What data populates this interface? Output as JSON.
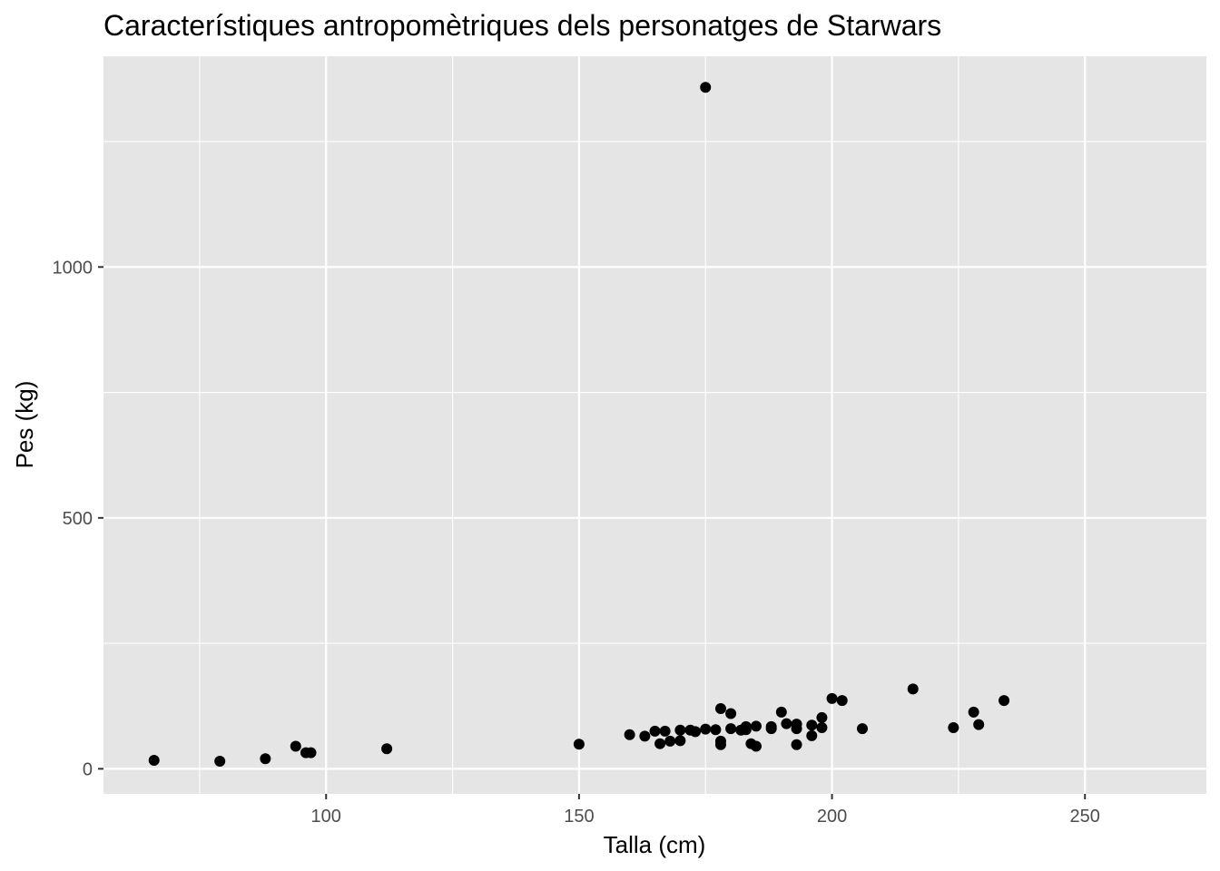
{
  "chart_data": {
    "type": "scatter",
    "title": "Característiques antropomètriques dels personatges de Starwars",
    "xlabel": "Talla (cm)",
    "ylabel": "Pes (kg)",
    "xlim": [
      56,
      274
    ],
    "ylim": [
      -50,
      1420
    ],
    "x_ticks": [
      100,
      150,
      200,
      250
    ],
    "x_tick_labels": [
      "100",
      "150",
      "200",
      "250"
    ],
    "y_ticks": [
      0,
      500,
      1000
    ],
    "y_tick_labels": [
      "0",
      "500",
      "1000"
    ],
    "x_minor_ticks": [
      75,
      125,
      175,
      225
    ],
    "y_minor_ticks": [
      250,
      750,
      1250
    ],
    "grid": true,
    "background": "#e5e5e5",
    "grid_color": "#ffffff",
    "point_color": "#000000",
    "points": [
      {
        "x": 66,
        "y": 17
      },
      {
        "x": 79,
        "y": 15
      },
      {
        "x": 88,
        "y": 20
      },
      {
        "x": 94,
        "y": 45
      },
      {
        "x": 96,
        "y": 32
      },
      {
        "x": 97,
        "y": 32
      },
      {
        "x": 112,
        "y": 40
      },
      {
        "x": 150,
        "y": 49
      },
      {
        "x": 160,
        "y": 68
      },
      {
        "x": 163,
        "y": 65
      },
      {
        "x": 165,
        "y": 75
      },
      {
        "x": 166,
        "y": 50
      },
      {
        "x": 167,
        "y": 75
      },
      {
        "x": 168,
        "y": 55
      },
      {
        "x": 170,
        "y": 56
      },
      {
        "x": 170,
        "y": 77
      },
      {
        "x": 172,
        "y": 77
      },
      {
        "x": 173,
        "y": 74
      },
      {
        "x": 175,
        "y": 1358
      },
      {
        "x": 175,
        "y": 79
      },
      {
        "x": 177,
        "y": 78
      },
      {
        "x": 178,
        "y": 120
      },
      {
        "x": 178,
        "y": 55
      },
      {
        "x": 178,
        "y": 48
      },
      {
        "x": 180,
        "y": 110
      },
      {
        "x": 180,
        "y": 80
      },
      {
        "x": 182,
        "y": 77
      },
      {
        "x": 183,
        "y": 84
      },
      {
        "x": 183,
        "y": 78
      },
      {
        "x": 184,
        "y": 50
      },
      {
        "x": 185,
        "y": 85
      },
      {
        "x": 185,
        "y": 45
      },
      {
        "x": 188,
        "y": 84
      },
      {
        "x": 188,
        "y": 80
      },
      {
        "x": 190,
        "y": 113
      },
      {
        "x": 191,
        "y": 90
      },
      {
        "x": 193,
        "y": 89
      },
      {
        "x": 193,
        "y": 80
      },
      {
        "x": 193,
        "y": 48
      },
      {
        "x": 196,
        "y": 87
      },
      {
        "x": 196,
        "y": 66
      },
      {
        "x": 198,
        "y": 102
      },
      {
        "x": 198,
        "y": 82
      },
      {
        "x": 200,
        "y": 140
      },
      {
        "x": 202,
        "y": 136
      },
      {
        "x": 206,
        "y": 80
      },
      {
        "x": 216,
        "y": 159
      },
      {
        "x": 224,
        "y": 82
      },
      {
        "x": 228,
        "y": 113
      },
      {
        "x": 229,
        "y": 88
      },
      {
        "x": 234,
        "y": 136
      }
    ]
  }
}
